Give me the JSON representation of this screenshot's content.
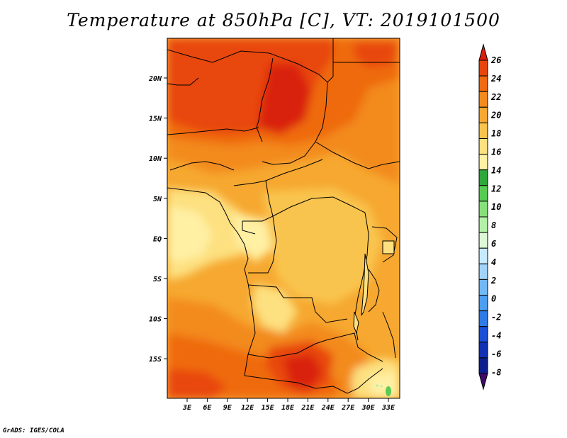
{
  "title": "Temperature at 850hPa [C], VT: 2019101500",
  "credit": "GrADS: IGES/COLA",
  "map": {
    "variable": "Temperature at 850hPa",
    "units": "C",
    "valid_time": "2019101500",
    "lat_labels": [
      "20N",
      "15N",
      "10N",
      "5N",
      "EQ",
      "5S",
      "10S",
      "15S"
    ],
    "lon_labels": [
      "3E",
      "6E",
      "9E",
      "12E",
      "15E",
      "18E",
      "21E",
      "24E",
      "27E",
      "30E",
      "33E"
    ]
  },
  "colorbar": {
    "labels": [
      "26",
      "24",
      "22",
      "20",
      "18",
      "16",
      "14",
      "12",
      "10",
      "8",
      "6",
      "4",
      "2",
      "0",
      "-2",
      "-4",
      "-6",
      "-8"
    ],
    "colors": [
      "#3d0a6c",
      "#0d1f8c",
      "#1230b4",
      "#1a4fd6",
      "#2e7ae6",
      "#4c9ef0",
      "#72b8f5",
      "#a2d4fa",
      "#c6eaff",
      "#dcf8d6",
      "#b4f0a8",
      "#88e07c",
      "#58cc52",
      "#2ea83a",
      "#fff0a4",
      "#fde080",
      "#f9c44e",
      "#f6a830",
      "#f38a1c",
      "#ef6a10",
      "#e8460c",
      "#d9200e"
    ]
  }
}
